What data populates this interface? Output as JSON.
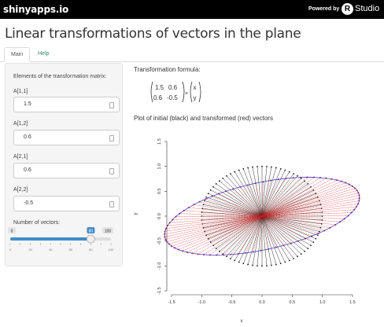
{
  "topbar": {
    "brand": "shinyapps.io",
    "powered_by": "Powered by",
    "r_letter": "R",
    "studio": "Studio"
  },
  "page_title": "Linear transformations of vectors in the plane",
  "tabs": [
    {
      "label": "Main",
      "active": true
    },
    {
      "label": "Help",
      "active": false
    }
  ],
  "sidebar": {
    "heading": "Elements of the transformation matrix:",
    "fields": [
      {
        "label": "A[1,1]",
        "value": "1.5"
      },
      {
        "label": "A[1,2]",
        "value": "0.6"
      },
      {
        "label": "A[2,1]",
        "value": "0.6"
      },
      {
        "label": "A[2,2]",
        "value": "-0.5"
      }
    ],
    "slider": {
      "label": "Number of vectors:",
      "min_label": "0",
      "max_label": "100",
      "value_label": "80",
      "value": 80,
      "min": 0,
      "max": 100,
      "ticks": [
        "0",
        "10",
        "20",
        "30",
        "40",
        "50",
        "60",
        "70",
        "80",
        "90",
        "100"
      ]
    }
  },
  "main": {
    "formula_heading": "Transformation formula:",
    "matrix": [
      [
        "1.5",
        "0.6"
      ],
      [
        "0.6",
        "-0.5"
      ]
    ],
    "times": "×",
    "vector": [
      "x",
      "y"
    ],
    "plot_heading": "Plot of initial (black) and transformed (red) vectors"
  },
  "chart_data": {
    "type": "scatter",
    "xlabel": "x",
    "ylabel": "y",
    "xlim": [
      -1.5,
      1.5
    ],
    "ylim": [
      -1.5,
      1.5
    ],
    "x_ticks": [
      "-1.5",
      "-1.0",
      "-0.5",
      "0.0",
      "0.5",
      "1.0",
      "1.5"
    ],
    "y_ticks": [
      "-1.5",
      "-1.0",
      "-0.5",
      "0.0",
      "0.5",
      "1.0",
      "1.5"
    ],
    "n_vectors": 80,
    "matrix": [
      [
        1.5,
        0.6
      ],
      [
        0.6,
        -0.5
      ]
    ],
    "colors": {
      "initial": "#1a1a1a",
      "transformed": "#e82020",
      "outline": "#2b2bc8"
    }
  }
}
